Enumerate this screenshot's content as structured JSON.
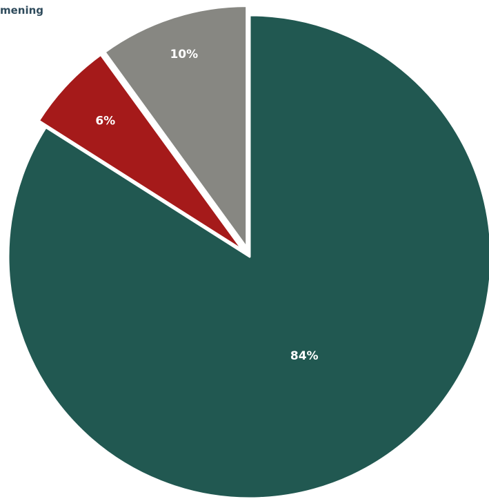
{
  "title": "mening",
  "chart_data": {
    "type": "pie",
    "title": "mening",
    "slices": [
      {
        "value": 84,
        "label": "84%",
        "color": "#215851"
      },
      {
        "value": 6,
        "label": "6%",
        "color": "#a51a1a"
      },
      {
        "value": 10,
        "label": "10%",
        "color": "#878782"
      }
    ],
    "start_angle_deg": 0,
    "direction": "clockwise",
    "exploded": [
      false,
      true,
      true
    ],
    "legend": "none",
    "label_color": "#ffffff",
    "slice_border_color": "#ffffff"
  }
}
